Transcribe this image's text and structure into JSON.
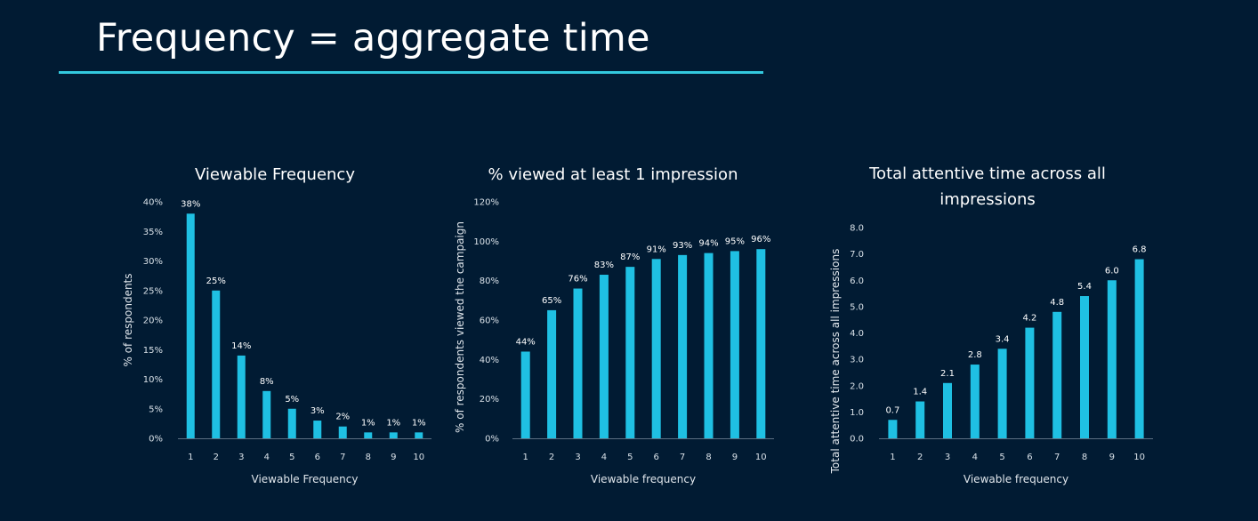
{
  "page": {
    "title": "Frequency = aggregate time",
    "accent_color": "#33c9de",
    "background_color": "#011b33"
  },
  "chart_data": [
    {
      "type": "bar",
      "title": "Viewable Frequency",
      "xlabel": "Viewable Frequency",
      "ylabel": "% of respondents",
      "categories": [
        "1",
        "2",
        "3",
        "4",
        "5",
        "6",
        "7",
        "8",
        "9",
        "10"
      ],
      "values": [
        38,
        25,
        14,
        8,
        5,
        3,
        2,
        1,
        1,
        1
      ],
      "data_labels": [
        "38%",
        "25%",
        "14%",
        "8%",
        "5%",
        "3%",
        "2%",
        "1%",
        "1%",
        "1%"
      ],
      "ylim": [
        0,
        40
      ],
      "yticks": [
        "0%",
        "5%",
        "10%",
        "15%",
        "20%",
        "25%",
        "30%",
        "35%",
        "40%"
      ],
      "bar_color": "#1fc0e3",
      "grid": false
    },
    {
      "type": "bar",
      "title": "% viewed at least 1 impression",
      "xlabel": "Viewable frequency",
      "ylabel": "% of respondents viewed the campaign",
      "categories": [
        "1",
        "2",
        "3",
        "4",
        "5",
        "6",
        "7",
        "8",
        "9",
        "10"
      ],
      "values": [
        44,
        65,
        76,
        83,
        87,
        91,
        93,
        94,
        95,
        96
      ],
      "data_labels": [
        "44%",
        "65%",
        "76%",
        "83%",
        "87%",
        "91%",
        "93%",
        "94%",
        "95%",
        "96%"
      ],
      "ylim": [
        0,
        120
      ],
      "yticks": [
        "0%",
        "20%",
        "40%",
        "60%",
        "80%",
        "100%",
        "120%"
      ],
      "bar_color": "#1fc0e3",
      "grid": false
    },
    {
      "type": "bar",
      "title": [
        "Total attentive time across all",
        "impressions"
      ],
      "xlabel": "Viewable frequency",
      "ylabel": "Total attentive time across all impressions",
      "categories": [
        "1",
        "2",
        "3",
        "4",
        "5",
        "6",
        "7",
        "8",
        "9",
        "10"
      ],
      "values": [
        0.7,
        1.4,
        2.1,
        2.8,
        3.4,
        4.2,
        4.8,
        5.4,
        6.0,
        6.8
      ],
      "data_labels": [
        "0.7",
        "1.4",
        "2.1",
        "2.8",
        "3.4",
        "4.2",
        "4.8",
        "5.4",
        "6.0",
        "6.8"
      ],
      "ylim": [
        0,
        8
      ],
      "yticks": [
        "0.0",
        "1.0",
        "2.0",
        "3.0",
        "4.0",
        "5.0",
        "6.0",
        "7.0",
        "8.0"
      ],
      "bar_color": "#1fc0e3",
      "grid": false
    }
  ]
}
